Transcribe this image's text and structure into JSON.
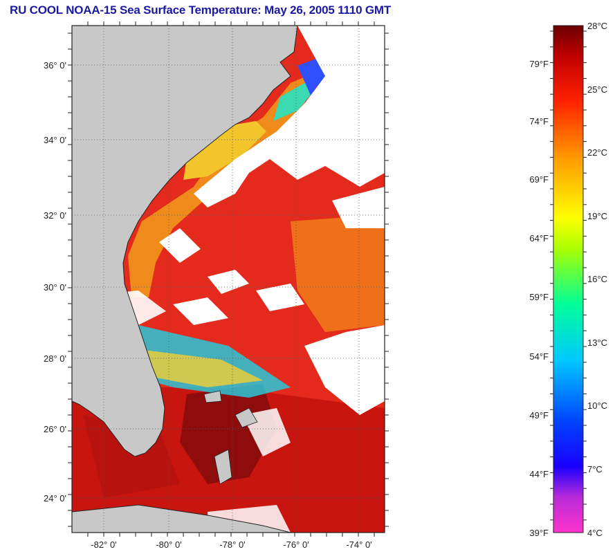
{
  "title": "RU COOL  NOAA-15  Sea Surface Temperature:  May 26, 2005 1110 GMT",
  "map": {
    "lon_range": [
      -83,
      -72.8
    ],
    "lat_range": [
      23,
      37.2
    ],
    "lat_ticks": [
      {
        "value": 36,
        "label": "36° 0'"
      },
      {
        "value": 34,
        "label": "34° 0'"
      },
      {
        "value": 32,
        "label": "32° 0'"
      },
      {
        "value": 30,
        "label": "30° 0'"
      },
      {
        "value": 28,
        "label": "28° 0'"
      },
      {
        "value": 26,
        "label": "26° 0'"
      },
      {
        "value": 24,
        "label": "24° 0'"
      }
    ],
    "lon_ticks": [
      {
        "value": -82,
        "label": "-82° 0'"
      },
      {
        "value": -80,
        "label": "-80° 0'"
      },
      {
        "value": -78,
        "label": "-78° 0'"
      },
      {
        "value": -76,
        "label": "-76° 0'"
      },
      {
        "value": -74,
        "label": "-74° 0'"
      }
    ],
    "colors": {
      "land": "#c8c8c8",
      "cloud": "#ffffff",
      "warm_sea": "#e8231a",
      "hot_sea": "#8e0c0c",
      "shelf_sea": "#f08a1a",
      "cool_shelf": "#f2c52a"
    }
  },
  "colorbar": {
    "celsius_labels": [
      "28°C",
      "25°C",
      "22°C",
      "19°C",
      "16°C",
      "13°C",
      "10°C",
      "7°C",
      "4°C"
    ],
    "fahrenheit_labels": [
      "79°F",
      "74°F",
      "69°F",
      "64°F",
      "59°F",
      "54°F",
      "49°F",
      "44°F",
      "39°F"
    ],
    "celsius_range": [
      4,
      28
    ],
    "stops": [
      "#ff33cc",
      "#7a1ed6",
      "#0000ff",
      "#00aaff",
      "#00ffee",
      "#66ff66",
      "#ffff00",
      "#ff9900",
      "#ff2200",
      "#990000",
      "#6a0000"
    ]
  }
}
